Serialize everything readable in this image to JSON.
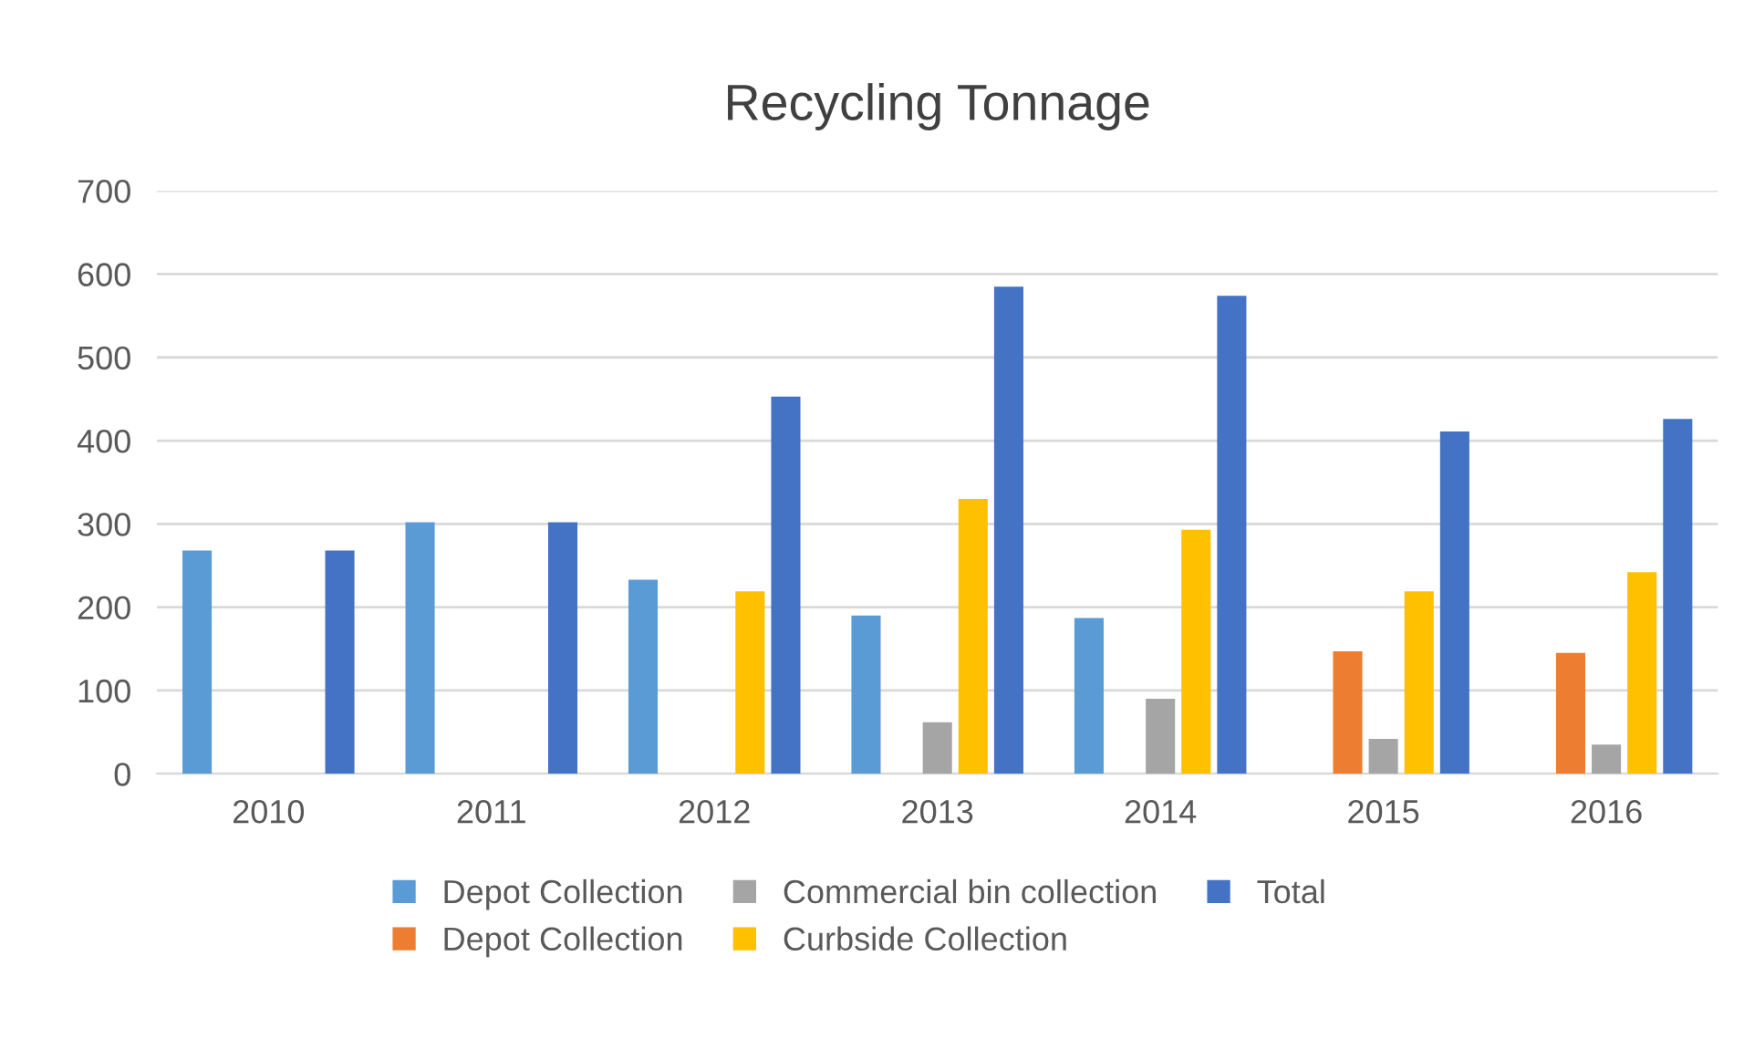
{
  "chart_data": {
    "type": "bar",
    "title": "Recycling Tonnage",
    "categories": [
      "2010",
      "2011",
      "2012",
      "2013",
      "2014",
      "2015",
      "2016"
    ],
    "series": [
      {
        "name": "Depot Collection",
        "color": "#5b9bd5",
        "values": [
          268,
          302,
          233,
          190,
          187,
          null,
          null
        ]
      },
      {
        "name": "Depot Collection",
        "color": "#ed7d31",
        "values": [
          null,
          null,
          null,
          null,
          null,
          147,
          145
        ]
      },
      {
        "name": "Commercial bin collection",
        "color": "#a5a5a5",
        "values": [
          null,
          null,
          null,
          62,
          90,
          42,
          35
        ]
      },
      {
        "name": "Curbside Collection",
        "color": "#ffc000",
        "values": [
          null,
          null,
          219,
          330,
          293,
          219,
          242
        ]
      },
      {
        "name": "Total",
        "color": "#4472c4",
        "values": [
          268,
          302,
          453,
          585,
          574,
          411,
          426
        ]
      }
    ],
    "ylim": [
      0,
      700
    ],
    "yticks": [
      0,
      100,
      200,
      300,
      400,
      500,
      600,
      700
    ],
    "grid": "y",
    "legend": "bottom"
  }
}
